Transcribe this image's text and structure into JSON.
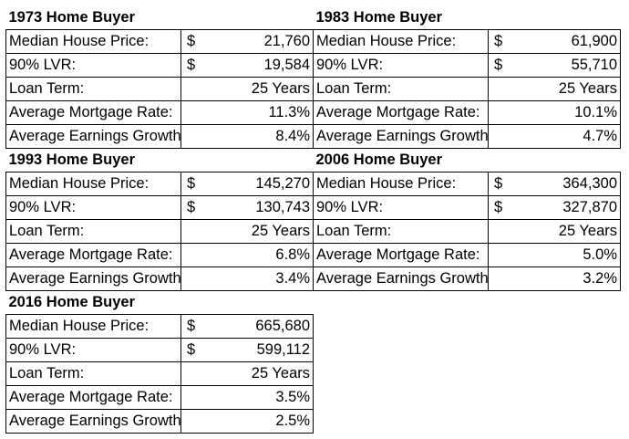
{
  "blocks": [
    {
      "title": "1973 Home Buyer",
      "rows": [
        {
          "label": "Median House Price:",
          "currency": "$",
          "value": "21,760"
        },
        {
          "label": "90% LVR:",
          "currency": "$",
          "value": "19,584"
        },
        {
          "label": "Loan Term:",
          "currency": "",
          "value": "25 Years"
        },
        {
          "label": "Average Mortgage Rate:",
          "currency": "",
          "value": "11.3%"
        },
        {
          "label": "Average Earnings Growth",
          "currency": "",
          "value": "8.4%"
        }
      ]
    },
    {
      "title": "1983 Home Buyer",
      "rows": [
        {
          "label": "Median House Price:",
          "currency": "$",
          "value": "61,900"
        },
        {
          "label": "90% LVR:",
          "currency": "$",
          "value": "55,710"
        },
        {
          "label": "Loan Term:",
          "currency": "",
          "value": "25 Years"
        },
        {
          "label": "Average Mortgage Rate:",
          "currency": "",
          "value": "10.1%"
        },
        {
          "label": "Average Earnings Growth",
          "currency": "",
          "value": "4.7%"
        }
      ]
    },
    {
      "title": "1993 Home Buyer",
      "rows": [
        {
          "label": "Median House Price:",
          "currency": "$",
          "value": "145,270"
        },
        {
          "label": "90% LVR:",
          "currency": "$",
          "value": "130,743"
        },
        {
          "label": "Loan Term:",
          "currency": "",
          "value": "25 Years"
        },
        {
          "label": "Average Mortgage Rate:",
          "currency": "",
          "value": "6.8%"
        },
        {
          "label": "Average Earnings Growth",
          "currency": "",
          "value": "3.4%"
        }
      ]
    },
    {
      "title": "2006 Home Buyer",
      "rows": [
        {
          "label": "Median House Price:",
          "currency": "$",
          "value": "364,300"
        },
        {
          "label": "90% LVR:",
          "currency": "$",
          "value": "327,870"
        },
        {
          "label": "Loan Term:",
          "currency": "",
          "value": "25 Years"
        },
        {
          "label": "Average Mortgage Rate:",
          "currency": "",
          "value": "5.0%"
        },
        {
          "label": "Average Earnings Growth",
          "currency": "",
          "value": "3.2%"
        }
      ]
    },
    {
      "title": "2016 Home Buyer",
      "rows": [
        {
          "label": "Median House Price:",
          "currency": "$",
          "value": "665,680"
        },
        {
          "label": "90% LVR:",
          "currency": "$",
          "value": "599,112"
        },
        {
          "label": "Loan Term:",
          "currency": "",
          "value": "25 Years"
        },
        {
          "label": "Average Mortgage Rate:",
          "currency": "",
          "value": "3.5%"
        },
        {
          "label": "Average Earnings Growth",
          "currency": "",
          "value": "2.5%"
        }
      ]
    }
  ]
}
